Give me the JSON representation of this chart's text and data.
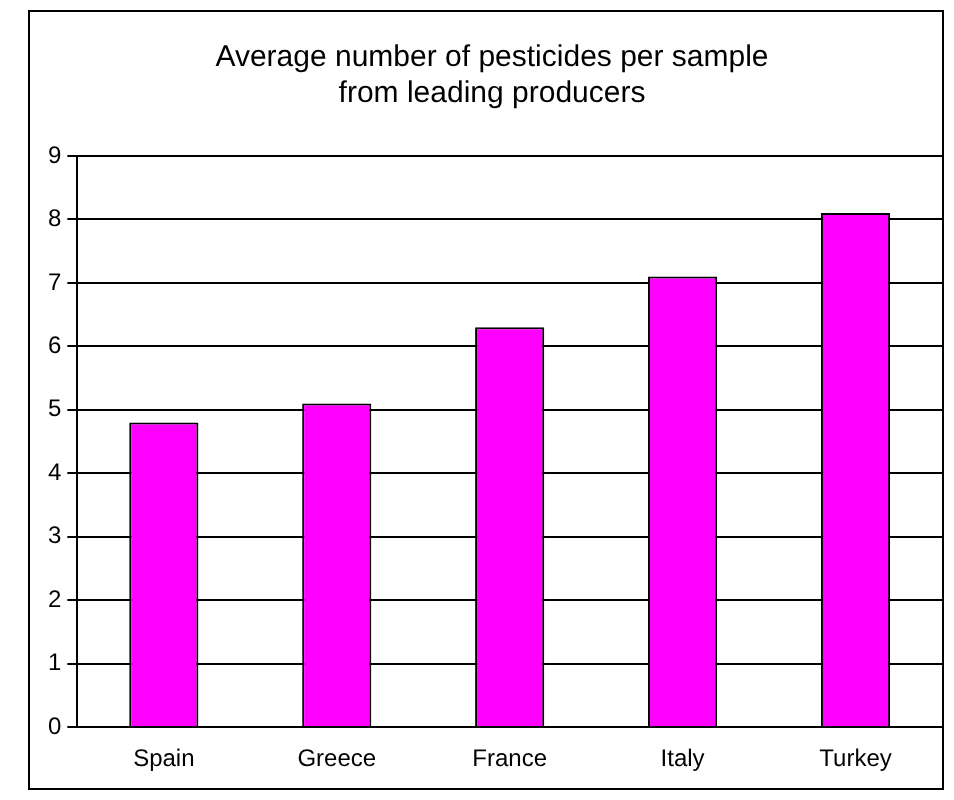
{
  "chart_data": {
    "type": "bar",
    "title": "Average number of pesticides per sample\nfrom leading producers",
    "categories": [
      "Spain",
      "Greece",
      "France",
      "Italy",
      "Turkey"
    ],
    "values": [
      4.8,
      5.1,
      6.3,
      7.1,
      8.1
    ],
    "color": "#ff00ff",
    "ylim": [
      0,
      9
    ],
    "yticks": [
      0,
      1,
      2,
      3,
      4,
      5,
      6,
      7,
      8,
      9
    ],
    "grid": "y",
    "legend": false
  }
}
